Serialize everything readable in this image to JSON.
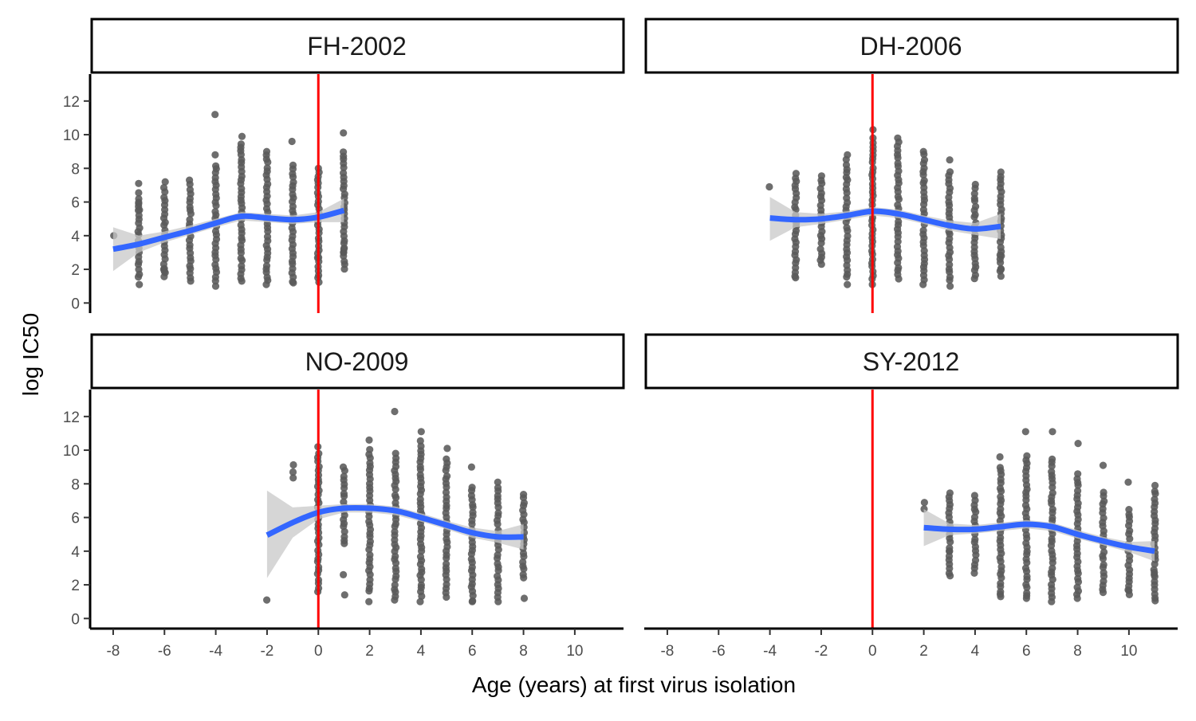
{
  "chart_data": {
    "type": "scatter",
    "xlabel": "Age (years) at first virus isolation",
    "ylabel": "log IC50",
    "xlim": [
      -8.9,
      11.9
    ],
    "ylim": [
      -0.6,
      13.6
    ],
    "x_ticks": [
      -8,
      -6,
      -4,
      -2,
      0,
      2,
      4,
      6,
      8,
      10
    ],
    "y_ticks": [
      0,
      2,
      4,
      6,
      8,
      10,
      12
    ],
    "grid": false,
    "reference_line": {
      "x": 0,
      "color": "#ff0000"
    },
    "colors": {
      "points": "#5a5a5a",
      "smooth": "#3366ff",
      "ribbon": "#c8c8c8",
      "reference": "#ff0000"
    },
    "panels": [
      {
        "name": "FH-2002",
        "x_range": [
          -8,
          1
        ],
        "smooth": [
          {
            "x": -8,
            "y": 3.2,
            "lo": 1.9,
            "hi": 4.5
          },
          {
            "x": -7,
            "y": 3.5,
            "lo": 3.0,
            "hi": 4.0
          },
          {
            "x": -6,
            "y": 3.9,
            "lo": 3.6,
            "hi": 4.25
          },
          {
            "x": -5,
            "y": 4.3,
            "lo": 4.05,
            "hi": 4.6
          },
          {
            "x": -4,
            "y": 4.75,
            "lo": 4.5,
            "hi": 5.0
          },
          {
            "x": -3,
            "y": 5.15,
            "lo": 4.9,
            "hi": 5.4
          },
          {
            "x": -2,
            "y": 5.05,
            "lo": 4.8,
            "hi": 5.3
          },
          {
            "x": -1,
            "y": 4.95,
            "lo": 4.7,
            "hi": 5.2
          },
          {
            "x": 0,
            "y": 5.1,
            "lo": 4.8,
            "hi": 5.4
          },
          {
            "x": 1,
            "y": 5.5,
            "lo": 4.8,
            "hi": 6.2
          }
        ],
        "groups": [
          {
            "x": -8,
            "lo": 4.0,
            "hi": 4.0,
            "extra": []
          },
          {
            "x": -7,
            "lo": 1.5,
            "hi": 6.5,
            "extra": [
              1.1,
              7.1,
              5.9,
              5.5
            ]
          },
          {
            "x": -6,
            "lo": 1.6,
            "hi": 6.8,
            "extra": [
              7.2,
              2.0,
              1.8
            ]
          },
          {
            "x": -5,
            "lo": 1.5,
            "hi": 7.0,
            "extra": [
              7.3,
              1.3
            ]
          },
          {
            "x": -4,
            "lo": 1.3,
            "hi": 8.2,
            "extra": [
              11.2,
              8.8,
              1.0
            ]
          },
          {
            "x": -3,
            "lo": 1.5,
            "hi": 9.5,
            "extra": [
              9.9,
              1.3
            ]
          },
          {
            "x": -2,
            "lo": 1.3,
            "hi": 8.8,
            "extra": [
              9.0,
              1.1
            ]
          },
          {
            "x": -1,
            "lo": 1.3,
            "hi": 8.2,
            "extra": [
              9.6,
              1.2
            ]
          },
          {
            "x": 0,
            "lo": 1.2,
            "hi": 7.8,
            "extra": [
              8.0,
              2.7
            ]
          },
          {
            "x": 1,
            "lo": 2.0,
            "hi": 9.0,
            "extra": [
              10.1,
              3.0,
              3.2
            ]
          }
        ]
      },
      {
        "name": "DH-2006",
        "x_range": [
          -4,
          5
        ],
        "smooth": [
          {
            "x": -4,
            "y": 5.05,
            "lo": 3.7,
            "hi": 6.3
          },
          {
            "x": -3,
            "y": 4.95,
            "lo": 4.5,
            "hi": 5.4
          },
          {
            "x": -2,
            "y": 5.0,
            "lo": 4.7,
            "hi": 5.3
          },
          {
            "x": -1,
            "y": 5.2,
            "lo": 4.95,
            "hi": 5.45
          },
          {
            "x": 0,
            "y": 5.45,
            "lo": 5.2,
            "hi": 5.7
          },
          {
            "x": 1,
            "y": 5.3,
            "lo": 5.05,
            "hi": 5.55
          },
          {
            "x": 2,
            "y": 4.95,
            "lo": 4.7,
            "hi": 5.2
          },
          {
            "x": 3,
            "y": 4.6,
            "lo": 4.3,
            "hi": 4.9
          },
          {
            "x": 4,
            "y": 4.4,
            "lo": 4.05,
            "hi": 4.75
          },
          {
            "x": 5,
            "y": 4.55,
            "lo": 3.8,
            "hi": 5.3
          }
        ],
        "groups": [
          {
            "x": -4,
            "lo": 6.9,
            "hi": 7.0,
            "extra": []
          },
          {
            "x": -3,
            "lo": 1.6,
            "hi": 7.7,
            "extra": [
              1.5
            ]
          },
          {
            "x": -2,
            "lo": 2.5,
            "hi": 7.6,
            "extra": [
              2.3
            ]
          },
          {
            "x": -1,
            "lo": 1.5,
            "hi": 8.5,
            "extra": [
              8.8,
              1.1
            ]
          },
          {
            "x": 0,
            "lo": 1.4,
            "hi": 9.8,
            "extra": [
              10.3,
              1.1
            ]
          },
          {
            "x": 1,
            "lo": 1.4,
            "hi": 9.6,
            "extra": [
              9.8
            ]
          },
          {
            "x": 2,
            "lo": 1.4,
            "hi": 8.8,
            "extra": [
              9.0,
              1.1
            ]
          },
          {
            "x": 3,
            "lo": 1.3,
            "hi": 7.8,
            "extra": [
              8.5,
              1.0
            ]
          },
          {
            "x": 4,
            "lo": 1.4,
            "hi": 7.0,
            "extra": []
          },
          {
            "x": 5,
            "lo": 1.6,
            "hi": 7.8,
            "extra": [
              2.8,
              2.0
            ]
          }
        ]
      },
      {
        "name": "NO-2009",
        "x_range": [
          -2,
          8
        ],
        "smooth": [
          {
            "x": -2,
            "y": 4.95,
            "lo": 2.4,
            "hi": 7.6
          },
          {
            "x": -1,
            "y": 5.7,
            "lo": 4.8,
            "hi": 6.6
          },
          {
            "x": 0,
            "y": 6.3,
            "lo": 5.9,
            "hi": 6.7
          },
          {
            "x": 1,
            "y": 6.55,
            "lo": 6.3,
            "hi": 6.8
          },
          {
            "x": 2,
            "y": 6.55,
            "lo": 6.3,
            "hi": 6.8
          },
          {
            "x": 3,
            "y": 6.4,
            "lo": 6.15,
            "hi": 6.65
          },
          {
            "x": 4,
            "y": 6.0,
            "lo": 5.75,
            "hi": 6.25
          },
          {
            "x": 5,
            "y": 5.55,
            "lo": 5.3,
            "hi": 5.8
          },
          {
            "x": 6,
            "y": 5.1,
            "lo": 4.8,
            "hi": 5.4
          },
          {
            "x": 7,
            "y": 4.85,
            "lo": 4.5,
            "hi": 5.2
          },
          {
            "x": 8,
            "y": 4.85,
            "lo": 4.1,
            "hi": 5.6
          }
        ],
        "groups": [
          {
            "x": -2,
            "lo": 1.1,
            "hi": 1.1,
            "extra": []
          },
          {
            "x": -1,
            "lo": 8.3,
            "hi": 9.1,
            "extra": []
          },
          {
            "x": 0,
            "lo": 1.6,
            "hi": 9.8,
            "extra": [
              10.2
            ]
          },
          {
            "x": 1,
            "lo": 4.4,
            "hi": 9.0,
            "extra": [
              2.6,
              1.4
            ]
          },
          {
            "x": 2,
            "lo": 1.6,
            "hi": 10.0,
            "extra": [
              10.6,
              1.0
            ]
          },
          {
            "x": 3,
            "lo": 1.3,
            "hi": 9.8,
            "extra": [
              12.3,
              1.1
            ]
          },
          {
            "x": 4,
            "lo": 1.3,
            "hi": 10.5,
            "extra": [
              11.1,
              1.0
            ]
          },
          {
            "x": 5,
            "lo": 1.3,
            "hi": 9.5,
            "extra": [
              10.1
            ]
          },
          {
            "x": 6,
            "lo": 1.1,
            "hi": 7.8,
            "extra": [
              9.0,
              1.0
            ]
          },
          {
            "x": 7,
            "lo": 1.3,
            "hi": 7.8,
            "extra": [
              8.1,
              1.0
            ]
          },
          {
            "x": 8,
            "lo": 2.4,
            "hi": 7.4,
            "extra": [
              1.2
            ]
          }
        ]
      },
      {
        "name": "SY-2012",
        "x_range": [
          2,
          11
        ],
        "smooth": [
          {
            "x": 2,
            "y": 5.4,
            "lo": 4.3,
            "hi": 6.5
          },
          {
            "x": 3,
            "y": 5.3,
            "lo": 4.95,
            "hi": 5.65
          },
          {
            "x": 4,
            "y": 5.3,
            "lo": 5.05,
            "hi": 5.55
          },
          {
            "x": 5,
            "y": 5.45,
            "lo": 5.2,
            "hi": 5.7
          },
          {
            "x": 6,
            "y": 5.6,
            "lo": 5.35,
            "hi": 5.85
          },
          {
            "x": 7,
            "y": 5.45,
            "lo": 5.2,
            "hi": 5.7
          },
          {
            "x": 8,
            "y": 5.0,
            "lo": 4.75,
            "hi": 5.25
          },
          {
            "x": 9,
            "y": 4.6,
            "lo": 4.35,
            "hi": 4.85
          },
          {
            "x": 10,
            "y": 4.25,
            "lo": 3.95,
            "hi": 4.55
          },
          {
            "x": 11,
            "y": 4.0,
            "lo": 3.4,
            "hi": 4.6
          }
        ],
        "groups": [
          {
            "x": 2,
            "lo": 6.5,
            "hi": 6.9,
            "extra": []
          },
          {
            "x": 3,
            "lo": 2.5,
            "hi": 7.5,
            "extra": [
              4.0
            ]
          },
          {
            "x": 4,
            "lo": 2.7,
            "hi": 7.3,
            "extra": []
          },
          {
            "x": 5,
            "lo": 1.4,
            "hi": 9.0,
            "extra": [
              9.6,
              1.3
            ]
          },
          {
            "x": 6,
            "lo": 1.3,
            "hi": 9.7,
            "extra": [
              11.1,
              1.2
            ]
          },
          {
            "x": 7,
            "lo": 1.3,
            "hi": 9.5,
            "extra": [
              11.1,
              1.0
            ]
          },
          {
            "x": 8,
            "lo": 1.4,
            "hi": 8.6,
            "extra": [
              10.4,
              1.2
            ]
          },
          {
            "x": 9,
            "lo": 1.5,
            "hi": 7.5,
            "extra": [
              9.1
            ]
          },
          {
            "x": 10,
            "lo": 1.4,
            "hi": 6.5,
            "extra": [
              8.1,
              1.7
            ]
          },
          {
            "x": 11,
            "lo": 1.0,
            "hi": 7.6,
            "extra": [
              7.9,
              2.6
            ]
          }
        ]
      }
    ]
  }
}
